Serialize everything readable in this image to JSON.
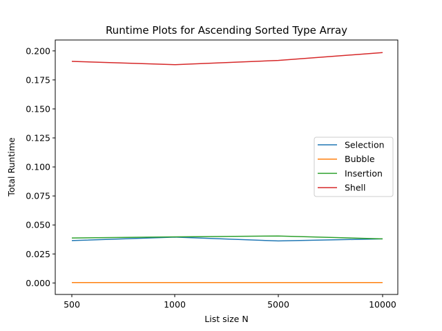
{
  "chart_data": {
    "type": "line",
    "title": "Runtime Plots for Ascending Sorted Type Array",
    "xlabel": "List size N",
    "ylabel": "Total Runtime",
    "categories": [
      "500",
      "1000",
      "5000",
      "10000"
    ],
    "ylim": [
      -0.0099,
      0.2094
    ],
    "yticks": [
      "0.000",
      "0.025",
      "0.050",
      "0.075",
      "0.100",
      "0.125",
      "0.150",
      "0.175",
      "0.200"
    ],
    "grid": false,
    "legend_position": "center-right",
    "series": [
      {
        "name": "Selection",
        "color": "#1f77b4",
        "values": [
          0.0365,
          0.0395,
          0.0362,
          0.038
        ]
      },
      {
        "name": "Bubble",
        "color": "#ff7f0e",
        "values": [
          0.0003,
          0.0003,
          0.0003,
          0.0003
        ]
      },
      {
        "name": "Insertion",
        "color": "#2ca02c",
        "values": [
          0.0388,
          0.0397,
          0.0405,
          0.038
        ]
      },
      {
        "name": "Shell",
        "color": "#d62728",
        "values": [
          0.191,
          0.1881,
          0.1918,
          0.1985
        ]
      }
    ]
  }
}
